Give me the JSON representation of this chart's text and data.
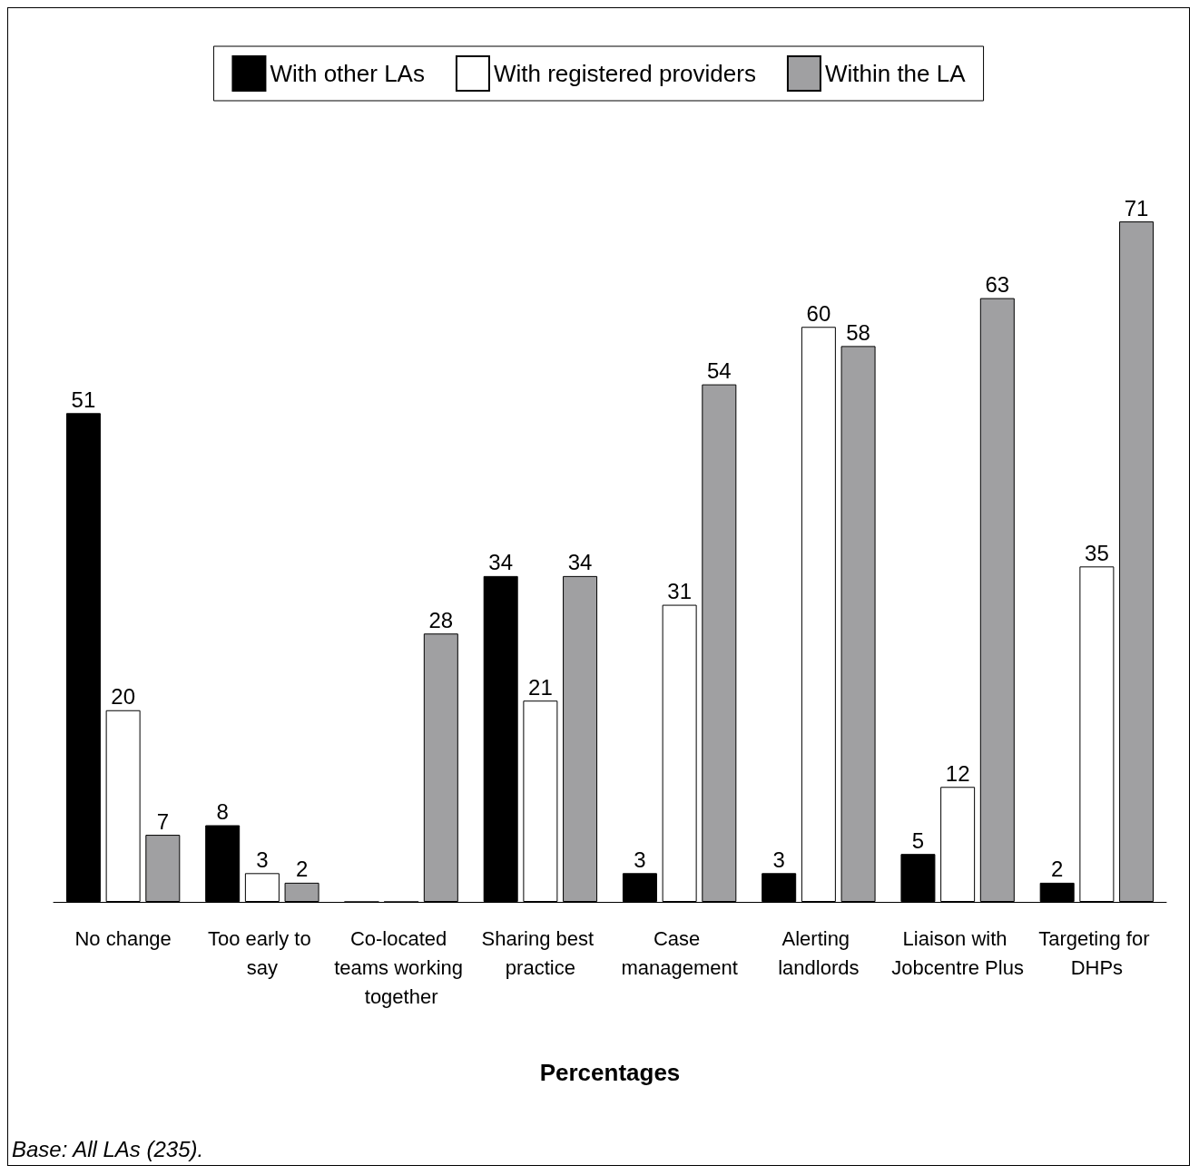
{
  "chart_data": {
    "type": "bar",
    "xlabel": "Percentages",
    "annotations": [
      "Base: All LAs (235)."
    ],
    "legend": "top",
    "categories": [
      "No change",
      "Too early to say",
      "Co-located teams working together",
      "Sharing best practice",
      "Case management",
      "Alerting landlords",
      "Liaison with Jobcentre Plus",
      "Targeting for DHPs"
    ],
    "series": [
      {
        "name": "With other LAs",
        "color": "#000000",
        "values": [
          51,
          8,
          0,
          34,
          3,
          3,
          5,
          2
        ],
        "value_labels": [
          "51",
          "8",
          null,
          "34",
          "3",
          "3",
          "5",
          "2"
        ]
      },
      {
        "name": "With registered providers",
        "color": "#ffffff",
        "values": [
          20,
          3,
          0,
          21,
          31,
          60,
          12,
          35
        ],
        "value_labels": [
          "20",
          "3",
          null,
          "21",
          "31",
          "60",
          "12",
          "35"
        ]
      },
      {
        "name": "Within the LA",
        "color": "#a0a0a2",
        "values": [
          7,
          2,
          28,
          34,
          54,
          58,
          63,
          71
        ],
        "value_labels": [
          "7",
          "2",
          "28",
          "34",
          "54",
          "58",
          "63",
          "71"
        ]
      }
    ]
  }
}
